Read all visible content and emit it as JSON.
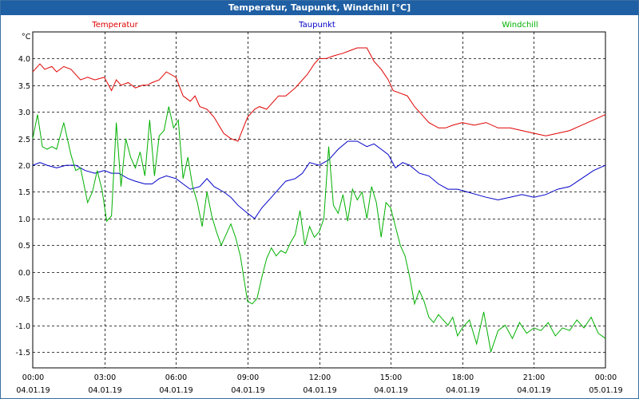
{
  "window": {
    "title": "Temperatur, Taupunkt, Windchill [°C]"
  },
  "chart_data": {
    "type": "line",
    "title": "Temperatur, Taupunkt, Windchill [°C]",
    "ylabel": "°C",
    "xlabel": "",
    "ylim": [
      -1.8,
      4.5
    ],
    "xlim": [
      0,
      24
    ],
    "grid": true,
    "legend_placement": "top",
    "y_ticks": [
      "4.0",
      "3.5",
      "3.0",
      "2.5",
      "2.0",
      "1.5",
      "1.0",
      "0.5",
      "0.0",
      "-0.5",
      "-1.0",
      "-1.5"
    ],
    "y_tick_values": [
      4.0,
      3.5,
      3.0,
      2.5,
      2.0,
      1.5,
      1.0,
      0.5,
      0.0,
      -0.5,
      -1.0,
      -1.5
    ],
    "x_ticks": [
      {
        "time": "00:00",
        "date": "04.01.19"
      },
      {
        "time": "03:00",
        "date": "04.01.19"
      },
      {
        "time": "06:00",
        "date": "04.01.19"
      },
      {
        "time": "09:00",
        "date": "04.01.19"
      },
      {
        "time": "12:00",
        "date": "04.01.19"
      },
      {
        "time": "15:00",
        "date": "04.01.19"
      },
      {
        "time": "18:00",
        "date": "04.01.19"
      },
      {
        "time": "21:00",
        "date": "04.01.19"
      },
      {
        "time": "00:00",
        "date": "05.01.19"
      }
    ],
    "x_tick_hours": [
      0,
      3,
      6,
      9,
      12,
      15,
      18,
      21,
      24
    ],
    "series": [
      {
        "name": "Temperatur",
        "color": "#e00000",
        "x": [
          0,
          0.3,
          0.5,
          0.8,
          1.0,
          1.3,
          1.6,
          2.0,
          2.3,
          2.6,
          3.0,
          3.3,
          3.5,
          3.7,
          4.0,
          4.3,
          4.6,
          4.8,
          5.0,
          5.3,
          5.6,
          5.8,
          6.0,
          6.3,
          6.6,
          6.8,
          7.0,
          7.3,
          7.6,
          8.0,
          8.3,
          8.6,
          9.0,
          9.3,
          9.5,
          9.8,
          10.0,
          10.3,
          10.6,
          11.0,
          11.2,
          11.5,
          11.8,
          12.0,
          12.3,
          12.6,
          13.0,
          13.3,
          13.6,
          14.0,
          14.3,
          14.6,
          14.9,
          15.1,
          15.4,
          15.7,
          16.0,
          16.3,
          16.6,
          17.0,
          17.3,
          17.6,
          18.0,
          18.5,
          19.0,
          19.5,
          20.0,
          20.5,
          21.0,
          21.5,
          22.0,
          22.5,
          23.0,
          23.5,
          24.0
        ],
        "values": [
          3.75,
          3.9,
          3.8,
          3.85,
          3.75,
          3.85,
          3.8,
          3.6,
          3.65,
          3.6,
          3.65,
          3.4,
          3.6,
          3.5,
          3.55,
          3.45,
          3.5,
          3.5,
          3.55,
          3.6,
          3.75,
          3.7,
          3.65,
          3.3,
          3.2,
          3.3,
          3.1,
          3.05,
          2.9,
          2.6,
          2.5,
          2.45,
          2.9,
          3.05,
          3.1,
          3.05,
          3.15,
          3.3,
          3.3,
          3.45,
          3.55,
          3.7,
          3.9,
          4.0,
          4.0,
          4.05,
          4.1,
          4.15,
          4.2,
          4.2,
          3.95,
          3.8,
          3.6,
          3.4,
          3.35,
          3.3,
          3.1,
          2.95,
          2.8,
          2.7,
          2.7,
          2.75,
          2.8,
          2.75,
          2.8,
          2.7,
          2.7,
          2.65,
          2.6,
          2.55,
          2.6,
          2.65,
          2.75,
          2.85,
          2.95
        ]
      },
      {
        "name": "Taupunkt",
        "color": "#0000c8",
        "x": [
          0,
          0.3,
          0.6,
          1.0,
          1.4,
          1.8,
          2.2,
          2.6,
          3.0,
          3.3,
          3.6,
          4.0,
          4.3,
          4.7,
          5.0,
          5.3,
          5.6,
          6.0,
          6.3,
          6.6,
          7.0,
          7.3,
          7.6,
          8.0,
          8.3,
          8.6,
          9.0,
          9.3,
          9.6,
          10.0,
          10.3,
          10.6,
          11.0,
          11.3,
          11.6,
          12.0,
          12.4,
          12.8,
          13.2,
          13.6,
          14.0,
          14.3,
          14.6,
          14.9,
          15.2,
          15.5,
          15.8,
          16.2,
          16.6,
          17.0,
          17.4,
          17.8,
          18.2,
          18.6,
          19.0,
          19.5,
          20.0,
          20.5,
          21.0,
          21.5,
          22.0,
          22.5,
          23.0,
          23.5,
          24.0
        ],
        "values": [
          2.0,
          2.05,
          2.0,
          1.95,
          2.0,
          2.0,
          1.9,
          1.85,
          1.9,
          1.85,
          1.85,
          1.75,
          1.7,
          1.65,
          1.65,
          1.75,
          1.8,
          1.75,
          1.65,
          1.55,
          1.6,
          1.75,
          1.6,
          1.5,
          1.4,
          1.25,
          1.1,
          1.0,
          1.2,
          1.4,
          1.55,
          1.7,
          1.75,
          1.85,
          2.05,
          2.0,
          2.1,
          2.3,
          2.45,
          2.45,
          2.35,
          2.4,
          2.3,
          2.2,
          1.95,
          2.05,
          2.0,
          1.85,
          1.8,
          1.65,
          1.55,
          1.55,
          1.5,
          1.45,
          1.4,
          1.35,
          1.4,
          1.45,
          1.4,
          1.45,
          1.55,
          1.6,
          1.75,
          1.9,
          2.0
        ]
      },
      {
        "name": "Windchill",
        "color": "#00b000",
        "x": [
          0,
          0.2,
          0.4,
          0.6,
          0.8,
          1.0,
          1.3,
          1.6,
          1.8,
          2.0,
          2.3,
          2.5,
          2.7,
          2.9,
          3.1,
          3.3,
          3.5,
          3.7,
          3.9,
          4.1,
          4.3,
          4.5,
          4.7,
          4.9,
          5.1,
          5.3,
          5.5,
          5.7,
          5.9,
          6.1,
          6.3,
          6.5,
          6.7,
          6.9,
          7.1,
          7.3,
          7.5,
          7.7,
          7.9,
          8.1,
          8.3,
          8.5,
          8.7,
          9.0,
          9.2,
          9.4,
          9.6,
          9.8,
          10.0,
          10.2,
          10.4,
          10.6,
          10.8,
          11.0,
          11.2,
          11.4,
          11.6,
          11.8,
          12.0,
          12.2,
          12.4,
          12.6,
          12.8,
          13.0,
          13.2,
          13.4,
          13.6,
          13.8,
          14.0,
          14.2,
          14.4,
          14.6,
          14.8,
          15.0,
          15.2,
          15.4,
          15.6,
          15.8,
          16.0,
          16.2,
          16.4,
          16.6,
          16.8,
          17.0,
          17.2,
          17.4,
          17.6,
          17.8,
          18.0,
          18.3,
          18.6,
          18.9,
          19.2,
          19.5,
          19.8,
          20.1,
          20.4,
          20.7,
          21.0,
          21.3,
          21.6,
          21.9,
          22.2,
          22.5,
          22.8,
          23.1,
          23.4,
          23.7,
          24.0
        ],
        "values": [
          2.5,
          2.95,
          2.35,
          2.3,
          2.35,
          2.3,
          2.8,
          2.2,
          1.9,
          1.95,
          1.3,
          1.5,
          1.9,
          1.55,
          0.95,
          1.05,
          2.8,
          1.6,
          2.5,
          2.15,
          1.95,
          2.25,
          1.8,
          2.85,
          1.8,
          2.55,
          2.65,
          3.1,
          2.7,
          2.85,
          1.75,
          2.15,
          1.6,
          1.3,
          0.85,
          1.5,
          1.05,
          0.75,
          0.5,
          0.7,
          0.9,
          0.65,
          0.3,
          -0.55,
          -0.6,
          -0.5,
          -0.1,
          0.25,
          0.45,
          0.3,
          0.4,
          0.35,
          0.55,
          0.7,
          1.15,
          0.5,
          0.85,
          0.65,
          0.75,
          1.0,
          2.35,
          1.25,
          1.1,
          1.45,
          0.95,
          1.55,
          1.35,
          1.5,
          1.0,
          1.6,
          1.3,
          0.65,
          1.3,
          1.2,
          0.85,
          0.5,
          0.3,
          -0.1,
          -0.6,
          -0.35,
          -0.55,
          -0.85,
          -0.95,
          -0.8,
          -0.9,
          -1.0,
          -0.85,
          -1.2,
          -1.05,
          -0.9,
          -1.35,
          -0.75,
          -1.5,
          -1.1,
          -1.0,
          -1.25,
          -0.95,
          -1.15,
          -1.05,
          -1.1,
          -0.95,
          -1.2,
          -1.05,
          -1.1,
          -0.9,
          -1.05,
          -0.85,
          -1.15,
          -1.25
        ]
      }
    ]
  }
}
